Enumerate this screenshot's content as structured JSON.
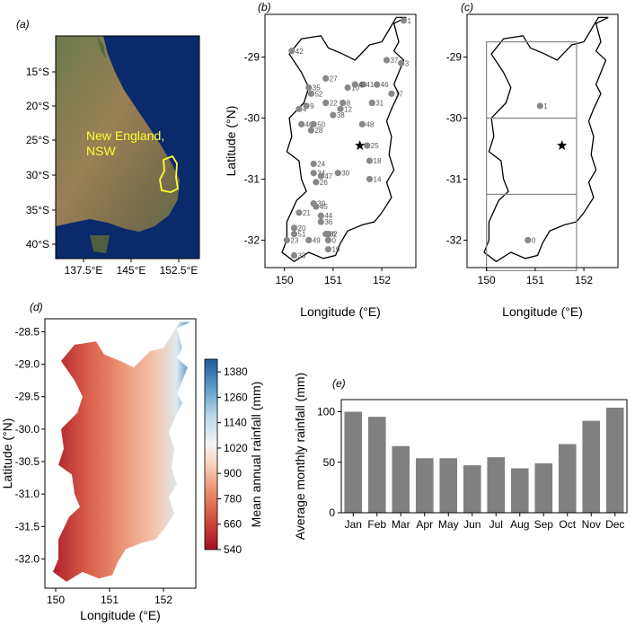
{
  "panels": {
    "a": {
      "label": "(a)",
      "overlay_text": "New England,\nNSW",
      "overlay_color": "#ffff33",
      "x_ticks": [
        "137.5°E",
        "145°E",
        "152.5°E"
      ],
      "y_ticks": [
        "15°S",
        "20°S",
        "25°S",
        "30°S",
        "35°S",
        "40°S"
      ]
    },
    "b": {
      "label": "(b)",
      "xlabel": "Longitude (°E)",
      "ylabel": "Latitude (°N)",
      "x_ticks": [
        "150",
        "151",
        "152"
      ],
      "y_ticks": [
        "-29",
        "-30",
        "-31",
        "-32"
      ]
    },
    "c": {
      "label": "(c)",
      "xlabel": "Longitude (°E)",
      "x_ticks": [
        "150",
        "151",
        "152"
      ],
      "y_ticks": [
        "-29",
        "-30",
        "-31",
        "-32"
      ]
    },
    "d": {
      "label": "(d)",
      "xlabel": "Longitude (°E)",
      "ylabel": "Latitude (°N)",
      "x_ticks": [
        "150",
        "151",
        "152"
      ],
      "y_ticks": [
        "-28.5",
        "-29.0",
        "-29.5",
        "-30.0",
        "-30.5",
        "-31.0",
        "-31.5",
        "-32.0"
      ],
      "colorbar_label": "Mean annual rainfall (mm)",
      "colorbar_ticks": [
        "1380",
        "1260",
        "1140",
        "1020",
        "900",
        "780",
        "660",
        "540"
      ]
    },
    "e": {
      "label": "(e)",
      "ylabel": "Average monthly rainfall (mm)"
    }
  },
  "chart_data": [
    {
      "type": "scatter",
      "panel": "b",
      "xlim": [
        149.6,
        152.7
      ],
      "ylim": [
        -32.45,
        -28.3
      ],
      "station_color": "#888888",
      "points": [
        {
          "id": "0",
          "x": 150.9,
          "y": -32.0
        },
        {
          "id": "1",
          "x": 152.45,
          "y": -28.4
        },
        {
          "id": "3",
          "x": 152.4,
          "y": -29.1
        },
        {
          "id": "4",
          "x": 150.3,
          "y": -29.85
        },
        {
          "id": "6",
          "x": 150.9,
          "y": -31.9
        },
        {
          "id": "8",
          "x": 151.2,
          "y": -29.75
        },
        {
          "id": "9",
          "x": 150.45,
          "y": -29.8
        },
        {
          "id": "10",
          "x": 151.3,
          "y": -29.5
        },
        {
          "id": "12",
          "x": 151.15,
          "y": -29.85
        },
        {
          "id": "14",
          "x": 151.75,
          "y": -31.0
        },
        {
          "id": "17",
          "x": 152.2,
          "y": -29.6
        },
        {
          "id": "18",
          "x": 151.75,
          "y": -30.7
        },
        {
          "id": "19",
          "x": 150.9,
          "y": -32.15
        },
        {
          "id": "20",
          "x": 150.2,
          "y": -31.8
        },
        {
          "id": "21",
          "x": 150.3,
          "y": -31.55
        },
        {
          "id": "22",
          "x": 150.85,
          "y": -29.75
        },
        {
          "id": "23",
          "x": 150.05,
          "y": -32.0
        },
        {
          "id": "24",
          "x": 150.6,
          "y": -30.75
        },
        {
          "id": "25",
          "x": 151.7,
          "y": -30.45
        },
        {
          "id": "26",
          "x": 150.65,
          "y": -31.05
        },
        {
          "id": "27",
          "x": 150.85,
          "y": -29.35
        },
        {
          "id": "28",
          "x": 150.55,
          "y": -30.2
        },
        {
          "id": "30",
          "x": 151.1,
          "y": -30.9
        },
        {
          "id": "31",
          "x": 151.8,
          "y": -29.75
        },
        {
          "id": "32",
          "x": 150.85,
          "y": -31.9
        },
        {
          "id": "33",
          "x": 150.2,
          "y": -32.25
        },
        {
          "id": "34",
          "x": 150.6,
          "y": -30.9
        },
        {
          "id": "35",
          "x": 150.5,
          "y": -29.5
        },
        {
          "id": "36",
          "x": 150.75,
          "y": -31.7
        },
        {
          "id": "37",
          "x": 152.1,
          "y": -29.05
        },
        {
          "id": "38",
          "x": 151.0,
          "y": -29.95
        },
        {
          "id": "39",
          "x": 150.6,
          "y": -31.4
        },
        {
          "id": "40",
          "x": 150.35,
          "y": -30.1
        },
        {
          "id": "41",
          "x": 151.6,
          "y": -29.45
        },
        {
          "id": "42",
          "x": 150.15,
          "y": -28.9
        },
        {
          "id": "43",
          "x": 151.45,
          "y": -29.45
        },
        {
          "id": "44",
          "x": 150.75,
          "y": -31.6
        },
        {
          "id": "45",
          "x": 150.65,
          "y": -31.45
        },
        {
          "id": "46",
          "x": 151.9,
          "y": -29.45
        },
        {
          "id": "47",
          "x": 150.75,
          "y": -30.95
        },
        {
          "id": "48",
          "x": 151.6,
          "y": -30.1
        },
        {
          "id": "49",
          "x": 150.5,
          "y": -32.0
        },
        {
          "id": "50",
          "x": 150.6,
          "y": -30.1
        },
        {
          "id": "51",
          "x": 150.2,
          "y": -31.9
        },
        {
          "id": "52",
          "x": 150.55,
          "y": -29.6
        }
      ],
      "centroid": {
        "x": 151.55,
        "y": -30.45
      }
    },
    {
      "type": "scatter",
      "panel": "c",
      "xlim": [
        149.6,
        152.7
      ],
      "ylim": [
        -32.45,
        -28.3
      ],
      "points": [
        {
          "id": "1",
          "x": 151.1,
          "y": -29.8
        },
        {
          "id": "0",
          "x": 150.85,
          "y": -32.0
        }
      ],
      "centroid": {
        "x": 151.55,
        "y": -30.45
      },
      "grid_boxes": [
        {
          "lon": [
            150.0,
            151.85
          ],
          "lat": [
            -30.0,
            -28.75
          ]
        },
        {
          "lon": [
            150.0,
            151.85
          ],
          "lat": [
            -31.25,
            -30.0
          ]
        },
        {
          "lon": [
            150.0,
            151.85
          ],
          "lat": [
            -32.5,
            -31.25
          ]
        }
      ]
    },
    {
      "type": "heatmap",
      "panel": "d",
      "xlim": [
        149.8,
        152.6
      ],
      "ylim": [
        -32.45,
        -28.3
      ],
      "colorbar_range": [
        540,
        1440
      ]
    },
    {
      "type": "bar",
      "panel": "e",
      "categories": [
        "Jan",
        "Feb",
        "Mar",
        "Apr",
        "May",
        "Jun",
        "Jul",
        "Aug",
        "Sep",
        "Oct",
        "Nov",
        "Dec"
      ],
      "values": [
        100,
        95,
        66,
        54,
        54,
        47,
        55,
        44,
        49,
        68,
        91,
        104
      ],
      "ylim": [
        0,
        112
      ],
      "y_ticks": [
        "0",
        "50",
        "100"
      ],
      "bar_color": "#808080"
    }
  ]
}
